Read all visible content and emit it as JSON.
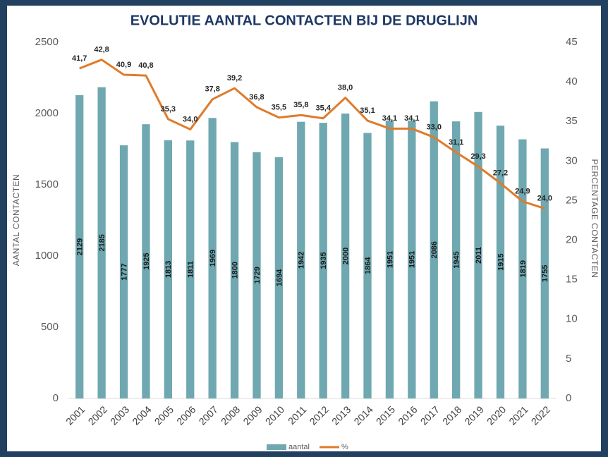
{
  "chart_data": {
    "type": "bar_line",
    "title": "EVOLUTIE AANTAL CONTACTEN BIJ DE DRUGLIJN",
    "ylabel": "AANTAL  CONTACTEN",
    "y2label": "PERCENTAGE  CONTACTEN",
    "categories": [
      "2001",
      "2002",
      "2003",
      "2004",
      "2005",
      "2006",
      "2007",
      "2008",
      "2009",
      "2010",
      "2011",
      "2012",
      "2013",
      "2014",
      "2015",
      "2016",
      "2017",
      "2018",
      "2019",
      "2020",
      "2021",
      "2022"
    ],
    "series": [
      {
        "name": "aantal",
        "type": "bar",
        "axis": "y",
        "color": "#6fa8b0",
        "values": [
          2129,
          2185,
          1777,
          1925,
          1813,
          1811,
          1969,
          1800,
          1729,
          1694,
          1942,
          1935,
          2000,
          1864,
          1951,
          1951,
          2086,
          1945,
          2011,
          1915,
          1819,
          1755
        ]
      },
      {
        "name": "%",
        "type": "line",
        "axis": "y2",
        "color": "#e07b2a",
        "values": [
          41.7,
          42.8,
          40.9,
          40.8,
          35.3,
          34.0,
          37.8,
          39.2,
          36.8,
          35.5,
          35.8,
          35.4,
          38.0,
          35.1,
          34.1,
          34.1,
          33.0,
          31.1,
          29.3,
          27.2,
          24.9,
          24.0
        ],
        "value_labels": [
          "41,7",
          "42,8",
          "40,9",
          "40,8",
          "35,3",
          "34,0",
          "37,8",
          "39,2",
          "36,8",
          "35,5",
          "35,8",
          "35,4",
          "38,0",
          "35,1",
          "34,1",
          "34,1",
          "33,0",
          "31,1",
          "29,3",
          "27,2",
          "24,9",
          "24,0"
        ]
      }
    ],
    "ylim": [
      0,
      2500
    ],
    "yticks": [
      0,
      500,
      1000,
      1500,
      2000,
      2500
    ],
    "y2lim": [
      0,
      45
    ],
    "y2ticks": [
      0,
      5,
      10,
      15,
      20,
      25,
      30,
      35,
      40,
      45
    ],
    "grid": false,
    "legend": "bottom"
  }
}
